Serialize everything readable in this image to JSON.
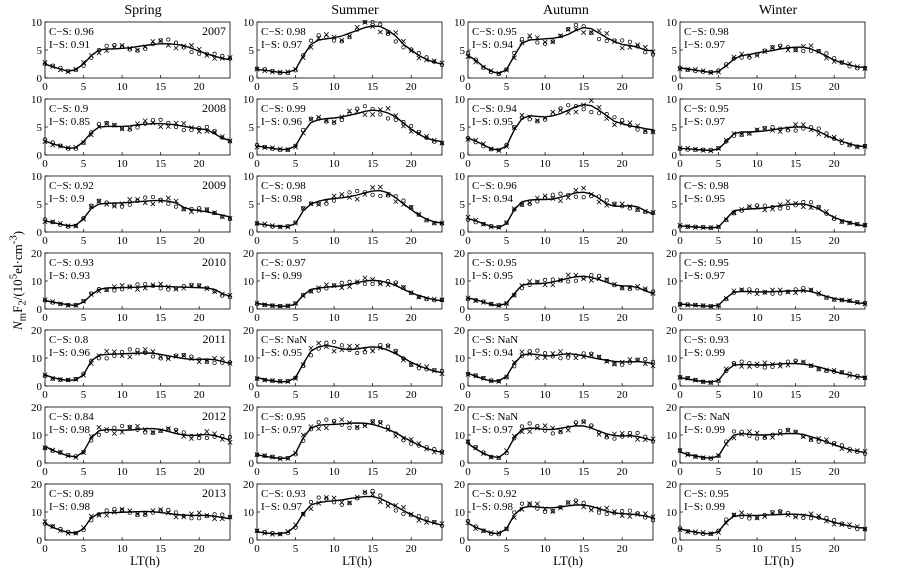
{
  "seasons": [
    "Spring",
    "Summer",
    "Autumn",
    "Winter"
  ],
  "years": [
    "2007",
    "2008",
    "2009",
    "2010",
    "2011",
    "2012",
    "2013"
  ],
  "y_axis_label": "NmF2/(10^5el·cm^-3)",
  "x_axis_label": "LT(h)",
  "chart_data": {
    "type": "line",
    "layout": "7 rows (years) x 4 columns (seasons)",
    "xlim": [
      0,
      24
    ],
    "xticks": [
      0,
      5,
      10,
      15,
      20
    ],
    "legend_markers": {
      "line": "model curve",
      "circle": "C-S",
      "cross": "I-S"
    },
    "rows": [
      {
        "year": "2007",
        "ylim": [
          0,
          10
        ],
        "yticks": [
          0,
          5,
          10
        ],
        "panels": [
          {
            "season": "Spring",
            "cs": "0.96",
            "is": "0.91",
            "line": [
              2.5,
              2,
              1.6,
              1.2,
              1.5,
              2.5,
              4,
              5,
              5.2,
              5.2,
              5.3,
              5.4,
              5.6,
              5.8,
              6,
              6.1,
              6.1,
              6,
              5.8,
              5.3,
              4.8,
              4.3,
              3.9,
              3.5,
              3.3
            ]
          },
          {
            "season": "Summer",
            "cs": "0.98",
            "is": "0.97",
            "line": [
              1.5,
              1.4,
              1.2,
              1,
              1,
              1.5,
              4,
              6,
              6.8,
              7,
              7.2,
              7.5,
              8,
              8.5,
              9,
              9.3,
              9.2,
              8.5,
              7.5,
              6,
              5,
              4,
              3.3,
              2.8,
              2.5
            ]
          },
          {
            "season": "Autumn",
            "cs": "0.95",
            "is": "0.94",
            "line": [
              4,
              3.2,
              2,
              1.2,
              0.8,
              1.5,
              4,
              6.2,
              6.8,
              6.9,
              7,
              7.1,
              7.3,
              7.8,
              8.5,
              9,
              8.8,
              8,
              7.2,
              6.5,
              6,
              5.8,
              5.5,
              5,
              4.8
            ]
          },
          {
            "season": "Winter",
            "cs": "0.98",
            "is": "0.97",
            "line": [
              1.8,
              1.6,
              1.4,
              1.2,
              1,
              1.2,
              2.2,
              3.4,
              4,
              4.2,
              4.5,
              4.7,
              4.9,
              5.2,
              5.4,
              5.5,
              5.5,
              5.2,
              4.6,
              3.9,
              3.2,
              2.7,
              2.3,
              2,
              1.9
            ]
          }
        ]
      },
      {
        "year": "2008",
        "ylim": [
          0,
          10
        ],
        "yticks": [
          0,
          5,
          10
        ],
        "panels": [
          {
            "season": "Spring",
            "cs": "0.9",
            "is": "0.85",
            "line": [
              2.5,
              2,
              1.6,
              1.2,
              1.3,
              2.4,
              4,
              5,
              5.1,
              5.1,
              5.1,
              5.2,
              5.4,
              5.5,
              5.6,
              5.6,
              5.5,
              5.4,
              5.1,
              4.9,
              4.7,
              4.5,
              3.8,
              3,
              2.6
            ]
          },
          {
            "season": "Summer",
            "cs": "0.99",
            "is": "0.96",
            "line": [
              1.6,
              1.4,
              1.2,
              1,
              1,
              1.6,
              4,
              5.8,
              6.3,
              6.5,
              6.6,
              6.8,
              7.1,
              7.4,
              7.8,
              8,
              7.9,
              7.5,
              6.8,
              5.7,
              4.6,
              3.7,
              3,
              2.6,
              2.4
            ]
          },
          {
            "season": "Autumn",
            "cs": "0.94",
            "is": "0.95",
            "line": [
              3,
              2.5,
              1.8,
              1.1,
              0.9,
              1.6,
              4.5,
              6.5,
              7,
              6.9,
              6.8,
              7,
              7.4,
              8,
              8.6,
              9,
              8.8,
              8,
              7,
              6,
              5.6,
              5.2,
              5,
              4.7,
              4.5
            ]
          },
          {
            "season": "Winter",
            "cs": "0.95",
            "is": "0.97",
            "line": [
              1.2,
              1.1,
              1,
              0.9,
              0.8,
              1.1,
              2.4,
              3.8,
              4.1,
              4.1,
              4.2,
              4.3,
              4.5,
              4.7,
              4.9,
              5,
              5,
              4.7,
              4.2,
              3.5,
              2.9,
              2.4,
              2,
              1.6,
              1.5
            ]
          }
        ]
      },
      {
        "year": "2009",
        "ylim": [
          0,
          10
        ],
        "yticks": [
          0,
          5,
          10
        ],
        "panels": [
          {
            "season": "Spring",
            "cs": "0.92",
            "is": "0.9",
            "line": [
              2,
              1.7,
              1.4,
              1.1,
              1.2,
              2.4,
              4.2,
              5,
              5.1,
              5.2,
              5.2,
              5.3,
              5.4,
              5.5,
              5.6,
              5.6,
              5.5,
              5.2,
              4.4,
              4,
              3.8,
              3.6,
              3.3,
              3,
              2.7
            ]
          },
          {
            "season": "Summer",
            "cs": "0.98",
            "is": "0.98",
            "line": [
              1.5,
              1.3,
              1.1,
              1,
              1,
              1.5,
              3.8,
              5,
              5.5,
              5.8,
              6,
              6.1,
              6.3,
              6.6,
              7,
              7.3,
              7.4,
              7,
              6.1,
              5,
              4,
              3,
              2.3,
              1.8,
              1.6
            ]
          },
          {
            "season": "Autumn",
            "cs": "0.96",
            "is": "0.94",
            "line": [
              2.4,
              2,
              1.5,
              1,
              0.8,
              1.5,
              4,
              5.4,
              5.7,
              5.8,
              5.8,
              5.9,
              6.2,
              6.6,
              7,
              7.1,
              6.8,
              6,
              5,
              4.6,
              4.6,
              4.7,
              4.5,
              3.8,
              3.2
            ]
          },
          {
            "season": "Winter",
            "cs": "0.98",
            "is": "0.95",
            "line": [
              1.1,
              1,
              0.9,
              0.8,
              0.7,
              0.9,
              2.4,
              3.8,
              4,
              4.1,
              4.2,
              4.3,
              4.5,
              4.7,
              4.9,
              5,
              5,
              4.7,
              4.1,
              3.3,
              2.6,
              2.1,
              1.7,
              1.3,
              1.1
            ]
          }
        ]
      },
      {
        "year": "2010",
        "ylim": [
          0,
          20
        ],
        "yticks": [
          0,
          10,
          20
        ],
        "panels": [
          {
            "season": "Spring",
            "cs": "0.93",
            "is": "0.93",
            "line": [
              3,
              2.5,
              2,
              1.5,
              1.3,
              2.5,
              5,
              7,
              7.5,
              7.6,
              7.6,
              7.7,
              7.8,
              8,
              8.1,
              8.1,
              8,
              7.9,
              7.8,
              7.7,
              7.6,
              7.5,
              7,
              5.5,
              4.5
            ]
          },
          {
            "season": "Summer",
            "cs": "0.97",
            "is": "0.99",
            "line": [
              2,
              1.6,
              1.3,
              1,
              1,
              1.8,
              5,
              7,
              7.5,
              7.8,
              8,
              8.3,
              8.8,
              9.4,
              10,
              10.3,
              10,
              9.4,
              8.4,
              7,
              5.8,
              4.8,
              4,
              3.3,
              3
            ]
          },
          {
            "season": "Autumn",
            "cs": "0.95",
            "is": "0.95",
            "line": [
              4,
              3.3,
              2.5,
              1.6,
              1.2,
              2,
              5.5,
              8.5,
              9,
              9,
              9.2,
              9.6,
              10.3,
              11,
              11.5,
              11.7,
              11.3,
              10.5,
              9.5,
              8.6,
              8.3,
              8.2,
              7.7,
              6.5,
              5.5
            ]
          },
          {
            "season": "Winter",
            "cs": "0.95",
            "is": "0.97",
            "line": [
              1.8,
              1.5,
              1.3,
              1.1,
              1,
              1.4,
              4,
              6,
              6.3,
              6.2,
              6.1,
              6.1,
              6.2,
              6.3,
              6.4,
              6.5,
              6.6,
              6.2,
              5.4,
              4.5,
              3.8,
              3.2,
              2.7,
              2.2,
              2
            ]
          }
        ]
      },
      {
        "year": "2011",
        "ylim": [
          0,
          20
        ],
        "yticks": [
          0,
          10,
          20
        ],
        "panels": [
          {
            "season": "Spring",
            "cs": "0.8",
            "is": "0.96",
            "line": [
              4,
              3,
              2.4,
              2,
              2.2,
              4,
              9,
              11,
              11.3,
              11.4,
              11.5,
              11.6,
              11.7,
              11.8,
              11.7,
              11.3,
              10.8,
              10.3,
              9.8,
              9.5,
              9.5,
              9.6,
              9.4,
              8.8,
              8
            ]
          },
          {
            "season": "Summer",
            "cs": "NaN",
            "is": "0.95",
            "line": [
              3,
              2.3,
              1.8,
              1.5,
              1.6,
              3,
              8,
              12.5,
              14,
              14.5,
              14,
              13.3,
              13,
              13.2,
              13.7,
              14,
              13.7,
              12.8,
              11.5,
              10,
              8.5,
              7.2,
              6.2,
              5.3,
              4.8
            ]
          },
          {
            "season": "Autumn",
            "cs": "NaN",
            "is": "0.94",
            "line": [
              4.5,
              3.5,
              2.5,
              1.8,
              1.8,
              3.5,
              8,
              11,
              11.5,
              11.2,
              10.8,
              10.8,
              11.2,
              11.5,
              11.3,
              10.8,
              10.2,
              9.6,
              9.2,
              8.8,
              8.6,
              8.6,
              8.7,
              8.5,
              8
            ]
          },
          {
            "season": "Winter",
            "cs": "0.93",
            "is": "0.99",
            "line": [
              3,
              2.5,
              2,
              1.6,
              1.4,
              2,
              5.5,
              7.5,
              7.7,
              7.6,
              7.5,
              7.5,
              7.7,
              7.9,
              8,
              8,
              7.8,
              7.4,
              6.8,
              6,
              5.2,
              4.5,
              3.9,
              3.4,
              3
            ]
          }
        ]
      },
      {
        "year": "2012",
        "ylim": [
          0,
          20
        ],
        "yticks": [
          0,
          10,
          20
        ],
        "panels": [
          {
            "season": "Spring",
            "cs": "0.84",
            "is": "0.98",
            "line": [
              6,
              4.5,
              3.5,
              2.5,
              2.2,
              4,
              9,
              11.5,
              12,
              11.8,
              11.7,
              11.8,
              12,
              12.2,
              12.3,
              12,
              11.3,
              10.5,
              10,
              9.8,
              10,
              10.2,
              9.8,
              9,
              8.2
            ]
          },
          {
            "season": "Summer",
            "cs": "0.95",
            "is": "0.97",
            "line": [
              3,
              2.4,
              2,
              1.6,
              1.8,
              3.5,
              9,
              12.5,
              13.5,
              13.7,
              13.8,
              14,
              14.2,
              14.3,
              14.2,
              13.8,
              13,
              12,
              10.8,
              9.2,
              7.8,
              6.4,
              5.2,
              4.4,
              3.8
            ]
          },
          {
            "season": "Autumn",
            "cs": "NaN",
            "is": "0.97",
            "line": [
              7,
              5,
              3.5,
              2.3,
              2,
              4,
              9,
              12,
              12.5,
              12.3,
              12,
              12,
              12.4,
              12.9,
              13.3,
              13.2,
              12.5,
              11.4,
              10.4,
              9.8,
              9.6,
              9.8,
              9.5,
              8.8,
              8
            ]
          },
          {
            "season": "Winter",
            "cs": "NaN",
            "is": "0.99",
            "line": [
              4,
              3,
              2.5,
              2,
              1.7,
              2.5,
              7,
              10,
              10.5,
              10.2,
              10,
              10,
              10.2,
              10.4,
              10.5,
              10.5,
              10.2,
              9.4,
              8.5,
              7.5,
              6.5,
              5.6,
              4.8,
              4.2,
              3.8
            ]
          }
        ]
      },
      {
        "year": "2013",
        "ylim": [
          0,
          20
        ],
        "yticks": [
          0,
          10,
          20
        ],
        "panels": [
          {
            "season": "Spring",
            "cs": "0.89",
            "is": "0.98",
            "line": [
              6,
              4.5,
              3.5,
              2.7,
              2.5,
              4,
              8,
              9.5,
              9.8,
              9.8,
              9.9,
              10,
              10.1,
              10.2,
              10.1,
              9.8,
              9.5,
              9.1,
              8.9,
              8.8,
              8.8,
              8.8,
              8.5,
              8,
              7.6
            ]
          },
          {
            "season": "Summer",
            "cs": "0.93",
            "is": "0.97",
            "line": [
              3,
              2.5,
              2.3,
              2.2,
              2.8,
              5,
              9.5,
              12.5,
              13.4,
              13.8,
              14,
              14.3,
              14.8,
              15.2,
              15.5,
              15.5,
              14.8,
              13.5,
              12,
              10.5,
              9,
              7.8,
              6.8,
              6,
              5.3
            ]
          },
          {
            "season": "Autumn",
            "cs": "0.92",
            "is": "0.98",
            "line": [
              6,
              4.5,
              3.5,
              2.5,
              2.3,
              4,
              9,
              11.5,
              12,
              11.8,
              11.5,
              11.5,
              11.8,
              12.2,
              12.5,
              12.5,
              12,
              11.2,
              10.3,
              9.6,
              9.4,
              9.3,
              9,
              8.5,
              8
            ]
          },
          {
            "season": "Winter",
            "cs": "0.95",
            "is": "0.99",
            "line": [
              4,
              3.3,
              2.8,
              2.4,
              2.2,
              3,
              6.5,
              8.5,
              8.8,
              8.8,
              8.8,
              8.9,
              9,
              9.1,
              9.2,
              9.2,
              9,
              8.6,
              7.9,
              7.1,
              6.3,
              5.6,
              5,
              4.5,
              4.2
            ]
          }
        ]
      }
    ]
  }
}
